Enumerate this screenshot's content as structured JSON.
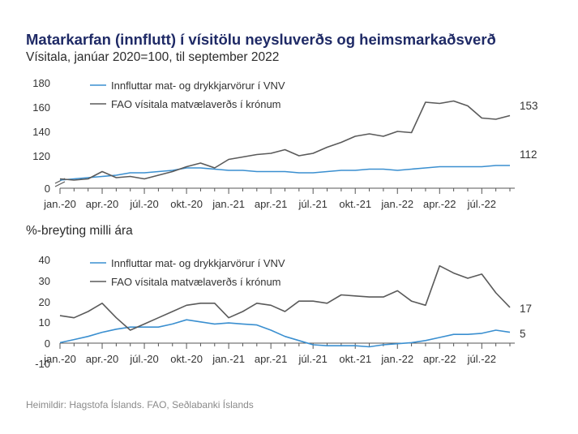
{
  "title": "Matarkarfan (innflutt) í vísitölu neysluverðs og heimsmarkaðsverð",
  "subtitle": "Vísitala, janúar 2020=100, til september 2022",
  "source": "Heimildir: Hagstofa Íslands. FAO, Seðlabanki Íslands",
  "colors": {
    "series1": "#3a8fd0",
    "series2": "#5a5a5a",
    "axis": "#555555"
  },
  "chart_data": [
    {
      "type": "line",
      "title": "",
      "ylabel": "",
      "ylim": [
        100,
        180
      ],
      "yticks": [
        "0",
        "120",
        "140",
        "160",
        "180"
      ],
      "axis_break": true,
      "grid": false,
      "legend": "top-left",
      "x_tick_labels": [
        "jan.-20",
        "apr.-20",
        "júl.-20",
        "okt.-20",
        "jan.-21",
        "apr.-21",
        "júl.-21",
        "okt.-21",
        "jan.-22",
        "apr.-22",
        "júl.-22"
      ],
      "x": [
        "2020-01",
        "2020-02",
        "2020-03",
        "2020-04",
        "2020-05",
        "2020-06",
        "2020-07",
        "2020-08",
        "2020-09",
        "2020-10",
        "2020-11",
        "2020-12",
        "2021-01",
        "2021-02",
        "2021-03",
        "2021-04",
        "2021-05",
        "2021-06",
        "2021-07",
        "2021-08",
        "2021-09",
        "2021-10",
        "2021-11",
        "2021-12",
        "2022-01",
        "2022-02",
        "2022-03",
        "2022-04",
        "2022-05",
        "2022-06",
        "2022-07",
        "2022-08",
        "2022-09"
      ],
      "series": [
        {
          "name": "Innfluttar mat- og drykkjarvörur í VNV",
          "values": [
            100,
            101,
            102,
            103,
            104,
            106,
            106,
            107,
            108,
            110,
            110,
            109,
            108,
            108,
            107,
            107,
            107,
            106,
            106,
            107,
            108,
            108,
            109,
            109,
            108,
            109,
            110,
            111,
            111,
            111,
            111,
            112,
            112
          ]
        },
        {
          "name": "FAO vísitala matvælaverðs í krónum",
          "values": [
            101,
            100,
            101,
            107,
            102,
            103,
            101,
            104,
            107,
            111,
            114,
            110,
            117,
            119,
            121,
            122,
            125,
            120,
            122,
            127,
            131,
            136,
            138,
            136,
            140,
            139,
            164,
            163,
            165,
            161,
            151,
            150,
            153
          ]
        }
      ],
      "end_labels": [
        "112",
        "153"
      ]
    },
    {
      "type": "line",
      "title": "%-breyting milli ára",
      "ylabel": "",
      "ylim": [
        -10,
        40
      ],
      "yticks": [
        "-10",
        "0",
        "10",
        "20",
        "30",
        "40"
      ],
      "grid": false,
      "legend": "top-left",
      "x_tick_labels": [
        "jan.-20",
        "apr.-20",
        "júl.-20",
        "okt.-20",
        "jan.-21",
        "apr.-21",
        "júl.-21",
        "okt.-21",
        "jan.-22",
        "apr.-22",
        "júl.-22"
      ],
      "x": [
        "2020-01",
        "2020-02",
        "2020-03",
        "2020-04",
        "2020-05",
        "2020-06",
        "2020-07",
        "2020-08",
        "2020-09",
        "2020-10",
        "2020-11",
        "2020-12",
        "2021-01",
        "2021-02",
        "2021-03",
        "2021-04",
        "2021-05",
        "2021-06",
        "2021-07",
        "2021-08",
        "2021-09",
        "2021-10",
        "2021-11",
        "2021-12",
        "2022-01",
        "2022-02",
        "2022-03",
        "2022-04",
        "2022-05",
        "2022-06",
        "2022-07",
        "2022-08",
        "2022-09"
      ],
      "series": [
        {
          "name": "Innfluttar mat- og drykkjarvörur í VNV",
          "values": [
            0,
            1.5,
            3,
            5,
            6.5,
            7.5,
            7.5,
            7.5,
            9,
            11,
            10,
            9,
            9.5,
            9,
            8.5,
            6,
            3,
            1,
            -1,
            -1.5,
            -1.5,
            -1.5,
            -2,
            -1,
            -0.5,
            0,
            1,
            2.5,
            4,
            4,
            4.5,
            6,
            5
          ]
        },
        {
          "name": "FAO vísitala matvælaverðs í krónum",
          "values": [
            13,
            12,
            15,
            19,
            12,
            6,
            9,
            12,
            15,
            18,
            19,
            19,
            12,
            15,
            19,
            18,
            15,
            20,
            20,
            19,
            23,
            22.5,
            22,
            22,
            25,
            20,
            18,
            37,
            33.5,
            31,
            33,
            24,
            17
          ]
        }
      ],
      "end_labels": [
        "5",
        "17"
      ]
    }
  ]
}
